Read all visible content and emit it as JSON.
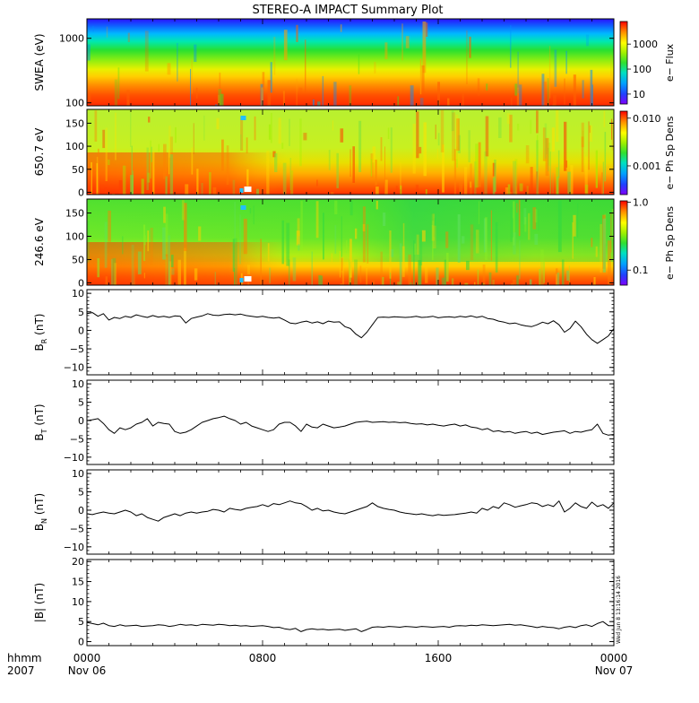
{
  "title": "STEREO-A IMPACT Summary Plot",
  "stamp": "Wed Jun  8 13:16:14 2016",
  "time_axis": {
    "corner_label_1": "hhmm",
    "corner_label_2": "2007",
    "ticks": [
      {
        "hhmm": "0000",
        "date": "Nov 06",
        "hour": 0
      },
      {
        "hhmm": "0800",
        "date": "",
        "hour": 8
      },
      {
        "hhmm": "1600",
        "date": "",
        "hour": 16
      },
      {
        "hhmm": "0000",
        "date": "Nov 07",
        "hour": 24
      }
    ],
    "range_hours": [
      0,
      24
    ]
  },
  "chart_data": [
    {
      "type": "heatmap",
      "id": "swea",
      "ylabel": "SWEA (eV)",
      "yscale": "log",
      "ylim": [
        90,
        2000
      ],
      "yticks": [
        100,
        1000
      ],
      "ytick_labels": [
        "100",
        "1000"
      ],
      "colorbar": {
        "label": "e− Flux",
        "scale": "log",
        "range": [
          4,
          8000
        ],
        "ticks": [
          10,
          100,
          1000
        ],
        "tick_labels": [
          "10",
          "100",
          "1000"
        ]
      },
      "colors": {
        "low": "#7f00ff",
        "high": "#ff0000"
      }
    },
    {
      "type": "heatmap",
      "id": "pad650",
      "ylabel": "650.7 eV",
      "ylim": [
        -5,
        180
      ],
      "yticks": [
        0,
        50,
        100,
        150
      ],
      "ytick_labels": [
        "0",
        "50",
        "100",
        "150"
      ],
      "colorbar": {
        "label": "e− Ph Sp Dens",
        "scale": "log",
        "range": [
          0.00025,
          0.014
        ],
        "ticks": [
          0.001,
          0.01
        ],
        "tick_labels": [
          "0.001",
          "0.010"
        ]
      }
    },
    {
      "type": "heatmap",
      "id": "pad246",
      "ylabel": "246.6 eV",
      "ylim": [
        -5,
        180
      ],
      "yticks": [
        0,
        50,
        100,
        150
      ],
      "ytick_labels": [
        "0",
        "50",
        "100",
        "150"
      ],
      "colorbar": {
        "label": "e− Ph Sp Dens",
        "scale": "log",
        "range": [
          0.06,
          1.05
        ],
        "ticks": [
          0.1,
          1.0
        ],
        "tick_labels": [
          "0.1",
          "1.0"
        ]
      }
    },
    {
      "type": "line",
      "id": "br",
      "ylabel": "B",
      "ylabel_sub": "R",
      "ylabel_unit": "(nT)",
      "ylim": [
        -12,
        11
      ],
      "yticks": [
        -10,
        -5,
        0,
        5,
        10
      ],
      "ytick_labels": [
        "−10",
        "−5",
        "0",
        "5",
        "10"
      ],
      "x_hours": [
        0,
        0.25,
        0.5,
        0.75,
        1,
        1.25,
        1.5,
        1.75,
        2,
        2.25,
        2.5,
        2.75,
        3,
        3.25,
        3.5,
        3.75,
        4,
        4.25,
        4.5,
        4.75,
        5,
        5.25,
        5.5,
        5.75,
        6,
        6.25,
        6.5,
        6.75,
        7,
        7.25,
        7.5,
        7.75,
        8,
        8.25,
        8.5,
        8.75,
        9,
        9.25,
        9.5,
        9.75,
        10,
        10.25,
        10.5,
        10.75,
        11,
        11.25,
        11.5,
        11.75,
        12,
        12.25,
        12.5,
        12.75,
        13,
        13.25,
        13.5,
        13.75,
        14,
        14.25,
        14.5,
        14.75,
        15,
        15.25,
        15.5,
        15.75,
        16,
        16.25,
        16.5,
        16.75,
        17,
        17.25,
        17.5,
        17.75,
        18,
        18.25,
        18.5,
        18.75,
        19,
        19.25,
        19.5,
        19.75,
        20,
        20.25,
        20.5,
        20.75,
        21,
        21.25,
        21.5,
        21.75,
        22,
        22.25,
        22.5,
        22.75,
        23,
        23.25,
        23.5,
        23.75,
        24
      ],
      "values": [
        4.5,
        4.8,
        3.8,
        4.5,
        2.8,
        3.5,
        3.2,
        3.8,
        3.5,
        4.2,
        3.8,
        3.5,
        4.0,
        3.6,
        3.8,
        3.5,
        3.9,
        3.8,
        2.0,
        3.2,
        3.6,
        3.9,
        4.5,
        4.1,
        4.0,
        4.3,
        4.4,
        4.2,
        4.4,
        4.0,
        3.8,
        3.6,
        3.8,
        3.5,
        3.3,
        3.5,
        2.8,
        2.0,
        1.8,
        2.2,
        2.5,
        2.0,
        2.3,
        1.8,
        2.5,
        2.2,
        2.3,
        1.0,
        0.5,
        -1.0,
        -2.0,
        -0.5,
        1.5,
        3.5,
        3.6,
        3.5,
        3.7,
        3.6,
        3.5,
        3.6,
        3.8,
        3.5,
        3.6,
        3.8,
        3.4,
        3.6,
        3.7,
        3.5,
        3.8,
        3.6,
        3.9,
        3.5,
        3.8,
        3.2,
        3.0,
        2.5,
        2.2,
        1.8,
        2.0,
        1.5,
        1.2,
        1.0,
        1.5,
        2.2,
        1.8,
        2.6,
        1.5,
        -0.5,
        0.5,
        2.5,
        1.0,
        -1.0,
        -2.5,
        -3.5,
        -2.5,
        -1.5,
        0.5
      ]
    },
    {
      "type": "line",
      "id": "bt",
      "ylabel": "B",
      "ylabel_sub": "T",
      "ylabel_unit": "(nT)",
      "ylim": [
        -12,
        11
      ],
      "yticks": [
        -10,
        -5,
        0,
        5,
        10
      ],
      "ytick_labels": [
        "−10",
        "−5",
        "0",
        "5",
        "10"
      ],
      "x_hours": [
        0,
        0.25,
        0.5,
        0.75,
        1,
        1.25,
        1.5,
        1.75,
        2,
        2.25,
        2.5,
        2.75,
        3,
        3.25,
        3.5,
        3.75,
        4,
        4.25,
        4.5,
        4.75,
        5,
        5.25,
        5.5,
        5.75,
        6,
        6.25,
        6.5,
        6.75,
        7,
        7.25,
        7.5,
        7.75,
        8,
        8.25,
        8.5,
        8.75,
        9,
        9.25,
        9.5,
        9.75,
        10,
        10.25,
        10.5,
        10.75,
        11,
        11.25,
        11.5,
        11.75,
        12,
        12.25,
        12.5,
        12.75,
        13,
        13.25,
        13.5,
        13.75,
        14,
        14.25,
        14.5,
        14.75,
        15,
        15.25,
        15.5,
        15.75,
        16,
        16.25,
        16.5,
        16.75,
        17,
        17.25,
        17.5,
        17.75,
        18,
        18.25,
        18.5,
        18.75,
        19,
        19.25,
        19.5,
        19.75,
        20,
        20.25,
        20.5,
        20.75,
        21,
        21.25,
        21.5,
        21.75,
        22,
        22.25,
        22.5,
        22.75,
        23,
        23.25,
        23.5,
        23.75,
        24
      ],
      "values": [
        0.0,
        0.2,
        0.5,
        -0.8,
        -2.5,
        -3.5,
        -2.0,
        -2.5,
        -2.0,
        -1.0,
        -0.5,
        0.5,
        -1.5,
        -0.5,
        -0.8,
        -1.0,
        -3.0,
        -3.5,
        -3.2,
        -2.5,
        -1.5,
        -0.5,
        0.0,
        0.5,
        0.8,
        1.2,
        0.5,
        0.0,
        -1.0,
        -0.5,
        -1.5,
        -2.0,
        -2.5,
        -3.0,
        -2.5,
        -1.0,
        -0.5,
        -0.5,
        -1.5,
        -3.0,
        -1.0,
        -1.8,
        -2.0,
        -1.0,
        -1.5,
        -2.0,
        -1.8,
        -1.5,
        -1.0,
        -0.5,
        -0.3,
        -0.2,
        -0.5,
        -0.4,
        -0.3,
        -0.5,
        -0.4,
        -0.6,
        -0.5,
        -0.8,
        -1.0,
        -0.9,
        -1.2,
        -1.0,
        -1.3,
        -1.5,
        -1.2,
        -1.0,
        -1.5,
        -1.2,
        -1.8,
        -2.0,
        -2.5,
        -2.2,
        -3.0,
        -2.8,
        -3.2,
        -3.0,
        -3.5,
        -3.2,
        -3.0,
        -3.5,
        -3.2,
        -3.8,
        -3.5,
        -3.2,
        -3.0,
        -2.8,
        -3.5,
        -3.0,
        -3.2,
        -2.8,
        -2.5,
        -1.0,
        -3.5,
        -4.0,
        -3.8
      ]
    },
    {
      "type": "line",
      "id": "bn",
      "ylabel": "B",
      "ylabel_sub": "N",
      "ylabel_unit": "(nT)",
      "ylim": [
        -12,
        11
      ],
      "yticks": [
        -10,
        -5,
        0,
        5,
        10
      ],
      "ytick_labels": [
        "−10",
        "−5",
        "0",
        "5",
        "10"
      ],
      "x_hours": [
        0,
        0.25,
        0.5,
        0.75,
        1,
        1.25,
        1.5,
        1.75,
        2,
        2.25,
        2.5,
        2.75,
        3,
        3.25,
        3.5,
        3.75,
        4,
        4.25,
        4.5,
        4.75,
        5,
        5.25,
        5.5,
        5.75,
        6,
        6.25,
        6.5,
        6.75,
        7,
        7.25,
        7.5,
        7.75,
        8,
        8.25,
        8.5,
        8.75,
        9,
        9.25,
        9.5,
        9.75,
        10,
        10.25,
        10.5,
        10.75,
        11,
        11.25,
        11.5,
        11.75,
        12,
        12.25,
        12.5,
        12.75,
        13,
        13.25,
        13.5,
        13.75,
        14,
        14.25,
        14.5,
        14.75,
        15,
        15.25,
        15.5,
        15.75,
        16,
        16.25,
        16.5,
        16.75,
        17,
        17.25,
        17.5,
        17.75,
        18,
        18.25,
        18.5,
        18.75,
        19,
        19.25,
        19.5,
        19.75,
        20,
        20.25,
        20.5,
        20.75,
        21,
        21.25,
        21.5,
        21.75,
        22,
        22.25,
        22.5,
        22.75,
        23,
        23.25,
        23.5,
        23.75,
        24
      ],
      "values": [
        -1.0,
        -1.2,
        -0.8,
        -0.5,
        -0.8,
        -1.0,
        -0.5,
        0.0,
        -0.5,
        -1.5,
        -1.0,
        -2.0,
        -2.5,
        -3.0,
        -2.0,
        -1.5,
        -1.0,
        -1.5,
        -0.8,
        -0.5,
        -0.8,
        -0.5,
        -0.3,
        0.2,
        0.0,
        -0.5,
        0.5,
        0.2,
        0.0,
        0.5,
        0.8,
        1.0,
        1.5,
        1.0,
        1.8,
        1.5,
        2.0,
        2.5,
        2.0,
        1.8,
        1.0,
        0.0,
        0.5,
        -0.2,
        0.0,
        -0.5,
        -0.8,
        -1.0,
        -0.5,
        0.0,
        0.5,
        1.0,
        2.0,
        1.0,
        0.5,
        0.2,
        0.0,
        -0.5,
        -0.8,
        -1.0,
        -1.2,
        -1.0,
        -1.3,
        -1.5,
        -1.2,
        -1.4,
        -1.3,
        -1.2,
        -1.0,
        -0.8,
        -0.5,
        -0.8,
        0.5,
        0.0,
        1.0,
        0.5,
        2.0,
        1.5,
        0.8,
        1.2,
        1.5,
        2.0,
        1.8,
        1.0,
        1.5,
        1.0,
        2.5,
        -0.5,
        0.5,
        2.0,
        1.0,
        0.5,
        2.2,
        1.0,
        1.5,
        0.5,
        2.0
      ]
    },
    {
      "type": "line",
      "id": "bmag",
      "ylabel": "|B|",
      "ylabel_unit": "(nT)",
      "ylim": [
        -1,
        20.5
      ],
      "yticks": [
        0,
        5,
        10,
        15,
        20
      ],
      "ytick_labels": [
        "0",
        "5",
        "10",
        "15",
        "20"
      ],
      "x_hours": [
        0,
        0.25,
        0.5,
        0.75,
        1,
        1.25,
        1.5,
        1.75,
        2,
        2.25,
        2.5,
        2.75,
        3,
        3.25,
        3.5,
        3.75,
        4,
        4.25,
        4.5,
        4.75,
        5,
        5.25,
        5.5,
        5.75,
        6,
        6.25,
        6.5,
        6.75,
        7,
        7.25,
        7.5,
        7.75,
        8,
        8.25,
        8.5,
        8.75,
        9,
        9.25,
        9.5,
        9.75,
        10,
        10.25,
        10.5,
        10.75,
        11,
        11.25,
        11.5,
        11.75,
        12,
        12.25,
        12.5,
        12.75,
        13,
        13.25,
        13.5,
        13.75,
        14,
        14.25,
        14.5,
        14.75,
        15,
        15.25,
        15.5,
        15.75,
        16,
        16.25,
        16.5,
        16.75,
        17,
        17.25,
        17.5,
        17.75,
        18,
        18.25,
        18.5,
        18.75,
        19,
        19.25,
        19.5,
        19.75,
        20,
        20.25,
        20.5,
        20.75,
        21,
        21.25,
        21.5,
        21.75,
        22,
        22.25,
        22.5,
        22.75,
        23,
        23.25,
        23.5,
        23.75,
        24
      ],
      "values": [
        4.8,
        4.5,
        4.2,
        4.6,
        4.0,
        3.8,
        4.2,
        3.9,
        4.0,
        4.1,
        3.8,
        3.9,
        4.0,
        4.2,
        4.1,
        3.8,
        4.0,
        4.3,
        4.1,
        4.2,
        4.0,
        4.3,
        4.2,
        4.1,
        4.3,
        4.2,
        4.0,
        4.1,
        3.9,
        4.0,
        3.8,
        3.9,
        4.0,
        3.8,
        3.5,
        3.6,
        3.2,
        3.0,
        3.3,
        2.5,
        3.0,
        3.2,
        3.0,
        3.1,
        2.9,
        3.0,
        3.1,
        2.8,
        3.0,
        3.2,
        2.5,
        3.0,
        3.6,
        3.7,
        3.6,
        3.8,
        3.7,
        3.6,
        3.8,
        3.7,
        3.6,
        3.8,
        3.7,
        3.6,
        3.7,
        3.8,
        3.6,
        3.9,
        4.0,
        3.9,
        4.1,
        4.0,
        4.2,
        4.1,
        4.0,
        4.1,
        4.2,
        4.3,
        4.1,
        4.2,
        4.0,
        3.8,
        3.5,
        3.8,
        3.6,
        3.5,
        3.2,
        3.6,
        3.8,
        3.5,
        4.0,
        4.2,
        3.8,
        4.5,
        5.0,
        4.0,
        4.0
      ]
    }
  ]
}
